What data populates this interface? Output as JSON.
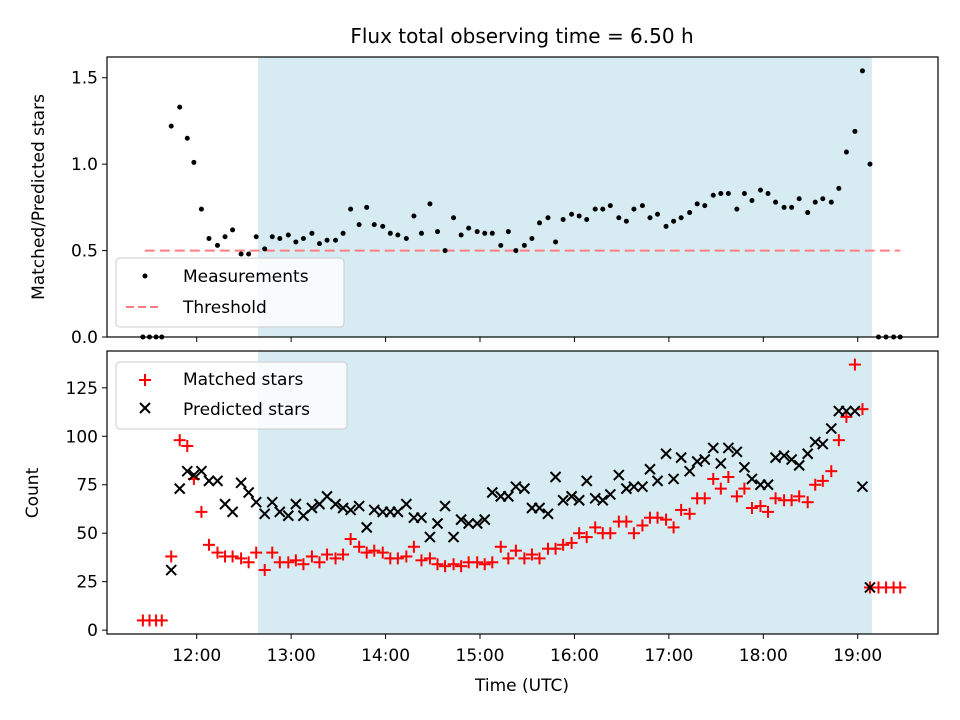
{
  "chart_data": {
    "title": "Flux total observing time = 6.50 h",
    "xlabel": "Time (UTC)",
    "x_ticks": [
      {
        "t": 12.0,
        "label": "12:00"
      },
      {
        "t": 13.0,
        "label": "13:00"
      },
      {
        "t": 14.0,
        "label": "14:00"
      },
      {
        "t": 15.0,
        "label": "15:00"
      },
      {
        "t": 16.0,
        "label": "16:00"
      },
      {
        "t": 17.0,
        "label": "17:00"
      },
      {
        "t": 18.0,
        "label": "18:00"
      },
      {
        "t": 19.0,
        "label": "19:00"
      }
    ],
    "xlim": [
      11.05,
      19.85
    ],
    "observing_window": [
      12.65,
      19.15
    ],
    "colors": {
      "window": "#add8e6",
      "measurement": "#000000",
      "threshold": "#ff7f7f",
      "matched": "#ff0000",
      "predicted": "#000000"
    },
    "top": {
      "type": "scatter",
      "ylabel": "Matched/Predicted stars",
      "ylim": [
        0,
        1.62
      ],
      "y_ticks": [
        0.0,
        0.5,
        1.0,
        1.5
      ],
      "y_tick_labels": [
        "0.0",
        "0.5",
        "1.0",
        "1.5"
      ],
      "threshold": {
        "value": 0.5,
        "x_range": [
          11.45,
          19.45
        ]
      },
      "legend": {
        "placement": "lower-left",
        "measurements_label": "Measurements",
        "threshold_label": "Threshold"
      },
      "measurements": [
        [
          11.43,
          0.0
        ],
        [
          11.5,
          0.0
        ],
        [
          11.57,
          0.0
        ],
        [
          11.63,
          0.0
        ],
        [
          11.73,
          1.22
        ],
        [
          11.82,
          1.33
        ],
        [
          11.9,
          1.15
        ],
        [
          11.97,
          1.01
        ],
        [
          12.05,
          0.74
        ],
        [
          12.13,
          0.57
        ],
        [
          12.22,
          0.53
        ],
        [
          12.3,
          0.58
        ],
        [
          12.38,
          0.62
        ],
        [
          12.47,
          0.48
        ],
        [
          12.55,
          0.48
        ],
        [
          12.63,
          0.58
        ],
        [
          12.72,
          0.51
        ],
        [
          12.8,
          0.58
        ],
        [
          12.88,
          0.57
        ],
        [
          12.97,
          0.59
        ],
        [
          13.05,
          0.55
        ],
        [
          13.13,
          0.57
        ],
        [
          13.22,
          0.6
        ],
        [
          13.3,
          0.54
        ],
        [
          13.38,
          0.56
        ],
        [
          13.47,
          0.56
        ],
        [
          13.55,
          0.6
        ],
        [
          13.63,
          0.74
        ],
        [
          13.72,
          0.65
        ],
        [
          13.8,
          0.75
        ],
        [
          13.88,
          0.65
        ],
        [
          13.97,
          0.64
        ],
        [
          14.05,
          0.6
        ],
        [
          14.13,
          0.59
        ],
        [
          14.22,
          0.57
        ],
        [
          14.3,
          0.7
        ],
        [
          14.38,
          0.6
        ],
        [
          14.47,
          0.77
        ],
        [
          14.55,
          0.61
        ],
        [
          14.63,
          0.5
        ],
        [
          14.72,
          0.69
        ],
        [
          14.8,
          0.59
        ],
        [
          14.88,
          0.63
        ],
        [
          14.97,
          0.61
        ],
        [
          15.05,
          0.6
        ],
        [
          15.13,
          0.6
        ],
        [
          15.22,
          0.53
        ],
        [
          15.3,
          0.61
        ],
        [
          15.38,
          0.5
        ],
        [
          15.47,
          0.53
        ],
        [
          15.55,
          0.57
        ],
        [
          15.63,
          0.66
        ],
        [
          15.72,
          0.69
        ],
        [
          15.8,
          0.55
        ],
        [
          15.88,
          0.68
        ],
        [
          15.97,
          0.71
        ],
        [
          16.05,
          0.7
        ],
        [
          16.13,
          0.68
        ],
        [
          16.22,
          0.74
        ],
        [
          16.3,
          0.74
        ],
        [
          16.38,
          0.76
        ],
        [
          16.47,
          0.69
        ],
        [
          16.55,
          0.67
        ],
        [
          16.63,
          0.74
        ],
        [
          16.72,
          0.76
        ],
        [
          16.8,
          0.69
        ],
        [
          16.88,
          0.71
        ],
        [
          16.97,
          0.64
        ],
        [
          17.05,
          0.67
        ],
        [
          17.13,
          0.69
        ],
        [
          17.22,
          0.72
        ],
        [
          17.3,
          0.77
        ],
        [
          17.38,
          0.76
        ],
        [
          17.47,
          0.82
        ],
        [
          17.55,
          0.83
        ],
        [
          17.63,
          0.83
        ],
        [
          17.72,
          0.74
        ],
        [
          17.8,
          0.83
        ],
        [
          17.88,
          0.79
        ],
        [
          17.97,
          0.85
        ],
        [
          18.05,
          0.83
        ],
        [
          18.13,
          0.78
        ],
        [
          18.22,
          0.75
        ],
        [
          18.3,
          0.75
        ],
        [
          18.38,
          0.8
        ],
        [
          18.47,
          0.72
        ],
        [
          18.55,
          0.78
        ],
        [
          18.63,
          0.8
        ],
        [
          18.72,
          0.78
        ],
        [
          18.8,
          0.86
        ],
        [
          18.88,
          1.07
        ],
        [
          18.97,
          1.19
        ],
        [
          19.05,
          1.54
        ],
        [
          19.13,
          1.0
        ],
        [
          19.22,
          0.0
        ],
        [
          19.3,
          0.0
        ],
        [
          19.38,
          0.0
        ],
        [
          19.45,
          0.0
        ]
      ]
    },
    "bottom": {
      "type": "scatter",
      "ylabel": "Count",
      "ylim": [
        -2,
        144
      ],
      "y_ticks": [
        0,
        25,
        50,
        75,
        100,
        125
      ],
      "y_tick_labels": [
        "0",
        "25",
        "50",
        "75",
        "100",
        "125"
      ],
      "legend": {
        "placement": "top-left",
        "matched_label": "Matched stars",
        "predicted_label": "Predicted stars"
      },
      "matched": [
        [
          11.43,
          5
        ],
        [
          11.5,
          5
        ],
        [
          11.57,
          5
        ],
        [
          11.63,
          5
        ],
        [
          11.73,
          38
        ],
        [
          11.82,
          98
        ],
        [
          11.9,
          95
        ],
        [
          11.97,
          78
        ],
        [
          12.05,
          61
        ],
        [
          12.13,
          44
        ],
        [
          12.22,
          40
        ],
        [
          12.3,
          38
        ],
        [
          12.38,
          38
        ],
        [
          12.47,
          37
        ],
        [
          12.55,
          35
        ],
        [
          12.63,
          40
        ],
        [
          12.72,
          31
        ],
        [
          12.8,
          40
        ],
        [
          12.88,
          35
        ],
        [
          12.97,
          35
        ],
        [
          13.05,
          36
        ],
        [
          13.13,
          34
        ],
        [
          13.22,
          38
        ],
        [
          13.3,
          35
        ],
        [
          13.38,
          39
        ],
        [
          13.47,
          37
        ],
        [
          13.55,
          39
        ],
        [
          13.63,
          47
        ],
        [
          13.72,
          43
        ],
        [
          13.8,
          40
        ],
        [
          13.88,
          41
        ],
        [
          13.97,
          40
        ],
        [
          14.05,
          37
        ],
        [
          14.13,
          37
        ],
        [
          14.22,
          38
        ],
        [
          14.3,
          43
        ],
        [
          14.38,
          36
        ],
        [
          14.47,
          37
        ],
        [
          14.55,
          34
        ],
        [
          14.63,
          33
        ],
        [
          14.72,
          34
        ],
        [
          14.8,
          33
        ],
        [
          14.88,
          35
        ],
        [
          14.97,
          35
        ],
        [
          15.05,
          34
        ],
        [
          15.13,
          35
        ],
        [
          15.22,
          43
        ],
        [
          15.3,
          37
        ],
        [
          15.38,
          41
        ],
        [
          15.47,
          37
        ],
        [
          15.55,
          39
        ],
        [
          15.63,
          37
        ],
        [
          15.72,
          42
        ],
        [
          15.8,
          42
        ],
        [
          15.88,
          44
        ],
        [
          15.97,
          45
        ],
        [
          16.05,
          50
        ],
        [
          16.13,
          48
        ],
        [
          16.22,
          53
        ],
        [
          16.3,
          50
        ],
        [
          16.38,
          50
        ],
        [
          16.47,
          56
        ],
        [
          16.55,
          56
        ],
        [
          16.63,
          50
        ],
        [
          16.72,
          54
        ],
        [
          16.8,
          58
        ],
        [
          16.88,
          58
        ],
        [
          16.97,
          57
        ],
        [
          17.05,
          53
        ],
        [
          17.13,
          62
        ],
        [
          17.22,
          60
        ],
        [
          17.3,
          68
        ],
        [
          17.38,
          68
        ],
        [
          17.47,
          78
        ],
        [
          17.55,
          73
        ],
        [
          17.63,
          79
        ],
        [
          17.72,
          69
        ],
        [
          17.8,
          73
        ],
        [
          17.88,
          63
        ],
        [
          17.97,
          64
        ],
        [
          18.05,
          61
        ],
        [
          18.13,
          68
        ],
        [
          18.22,
          67
        ],
        [
          18.3,
          67
        ],
        [
          18.38,
          69
        ],
        [
          18.47,
          66
        ],
        [
          18.55,
          75
        ],
        [
          18.63,
          77
        ],
        [
          18.72,
          82
        ],
        [
          18.8,
          98
        ],
        [
          18.88,
          110
        ],
        [
          18.97,
          137
        ],
        [
          19.05,
          114
        ],
        [
          19.13,
          22
        ],
        [
          19.22,
          22
        ],
        [
          19.3,
          22
        ],
        [
          19.38,
          22
        ],
        [
          19.45,
          22
        ]
      ],
      "predicted": [
        [
          11.73,
          31
        ],
        [
          11.82,
          73
        ],
        [
          11.9,
          82
        ],
        [
          11.97,
          80
        ],
        [
          12.05,
          82
        ],
        [
          12.13,
          77
        ],
        [
          12.22,
          77
        ],
        [
          12.3,
          65
        ],
        [
          12.38,
          61
        ],
        [
          12.47,
          76
        ],
        [
          12.55,
          71
        ],
        [
          12.63,
          66
        ],
        [
          12.72,
          60
        ],
        [
          12.8,
          66
        ],
        [
          12.88,
          61
        ],
        [
          12.97,
          59
        ],
        [
          13.05,
          65
        ],
        [
          13.13,
          59
        ],
        [
          13.22,
          63
        ],
        [
          13.3,
          65
        ],
        [
          13.38,
          69
        ],
        [
          13.47,
          65
        ],
        [
          13.55,
          63
        ],
        [
          13.63,
          62
        ],
        [
          13.72,
          64
        ],
        [
          13.8,
          53
        ],
        [
          13.88,
          62
        ],
        [
          13.97,
          61
        ],
        [
          14.05,
          61
        ],
        [
          14.13,
          61
        ],
        [
          14.22,
          65
        ],
        [
          14.3,
          58
        ],
        [
          14.38,
          58
        ],
        [
          14.47,
          48
        ],
        [
          14.55,
          55
        ],
        [
          14.63,
          64
        ],
        [
          14.72,
          48
        ],
        [
          14.8,
          57
        ],
        [
          14.88,
          55
        ],
        [
          14.97,
          55
        ],
        [
          15.05,
          57
        ],
        [
          15.13,
          71
        ],
        [
          15.22,
          69
        ],
        [
          15.3,
          69
        ],
        [
          15.38,
          74
        ],
        [
          15.47,
          73
        ],
        [
          15.55,
          63
        ],
        [
          15.63,
          63
        ],
        [
          15.72,
          60
        ],
        [
          15.8,
          79
        ],
        [
          15.88,
          67
        ],
        [
          15.97,
          69
        ],
        [
          16.05,
          67
        ],
        [
          16.13,
          77
        ],
        [
          16.22,
          68
        ],
        [
          16.3,
          67
        ],
        [
          16.38,
          70
        ],
        [
          16.47,
          80
        ],
        [
          16.55,
          73
        ],
        [
          16.63,
          74
        ],
        [
          16.72,
          74
        ],
        [
          16.8,
          83
        ],
        [
          16.88,
          77
        ],
        [
          16.97,
          91
        ],
        [
          17.05,
          78
        ],
        [
          17.13,
          89
        ],
        [
          17.22,
          82
        ],
        [
          17.3,
          87
        ],
        [
          17.38,
          88
        ],
        [
          17.47,
          94
        ],
        [
          17.55,
          86
        ],
        [
          17.63,
          94
        ],
        [
          17.72,
          92
        ],
        [
          17.8,
          84
        ],
        [
          17.88,
          78
        ],
        [
          17.97,
          75
        ],
        [
          18.05,
          75
        ],
        [
          18.13,
          89
        ],
        [
          18.22,
          90
        ],
        [
          18.3,
          88
        ],
        [
          18.38,
          85
        ],
        [
          18.47,
          91
        ],
        [
          18.55,
          97
        ],
        [
          18.63,
          96
        ],
        [
          18.72,
          104
        ],
        [
          18.8,
          113
        ],
        [
          18.88,
          113
        ],
        [
          18.97,
          113
        ],
        [
          19.05,
          74
        ],
        [
          19.13,
          22
        ]
      ]
    }
  }
}
